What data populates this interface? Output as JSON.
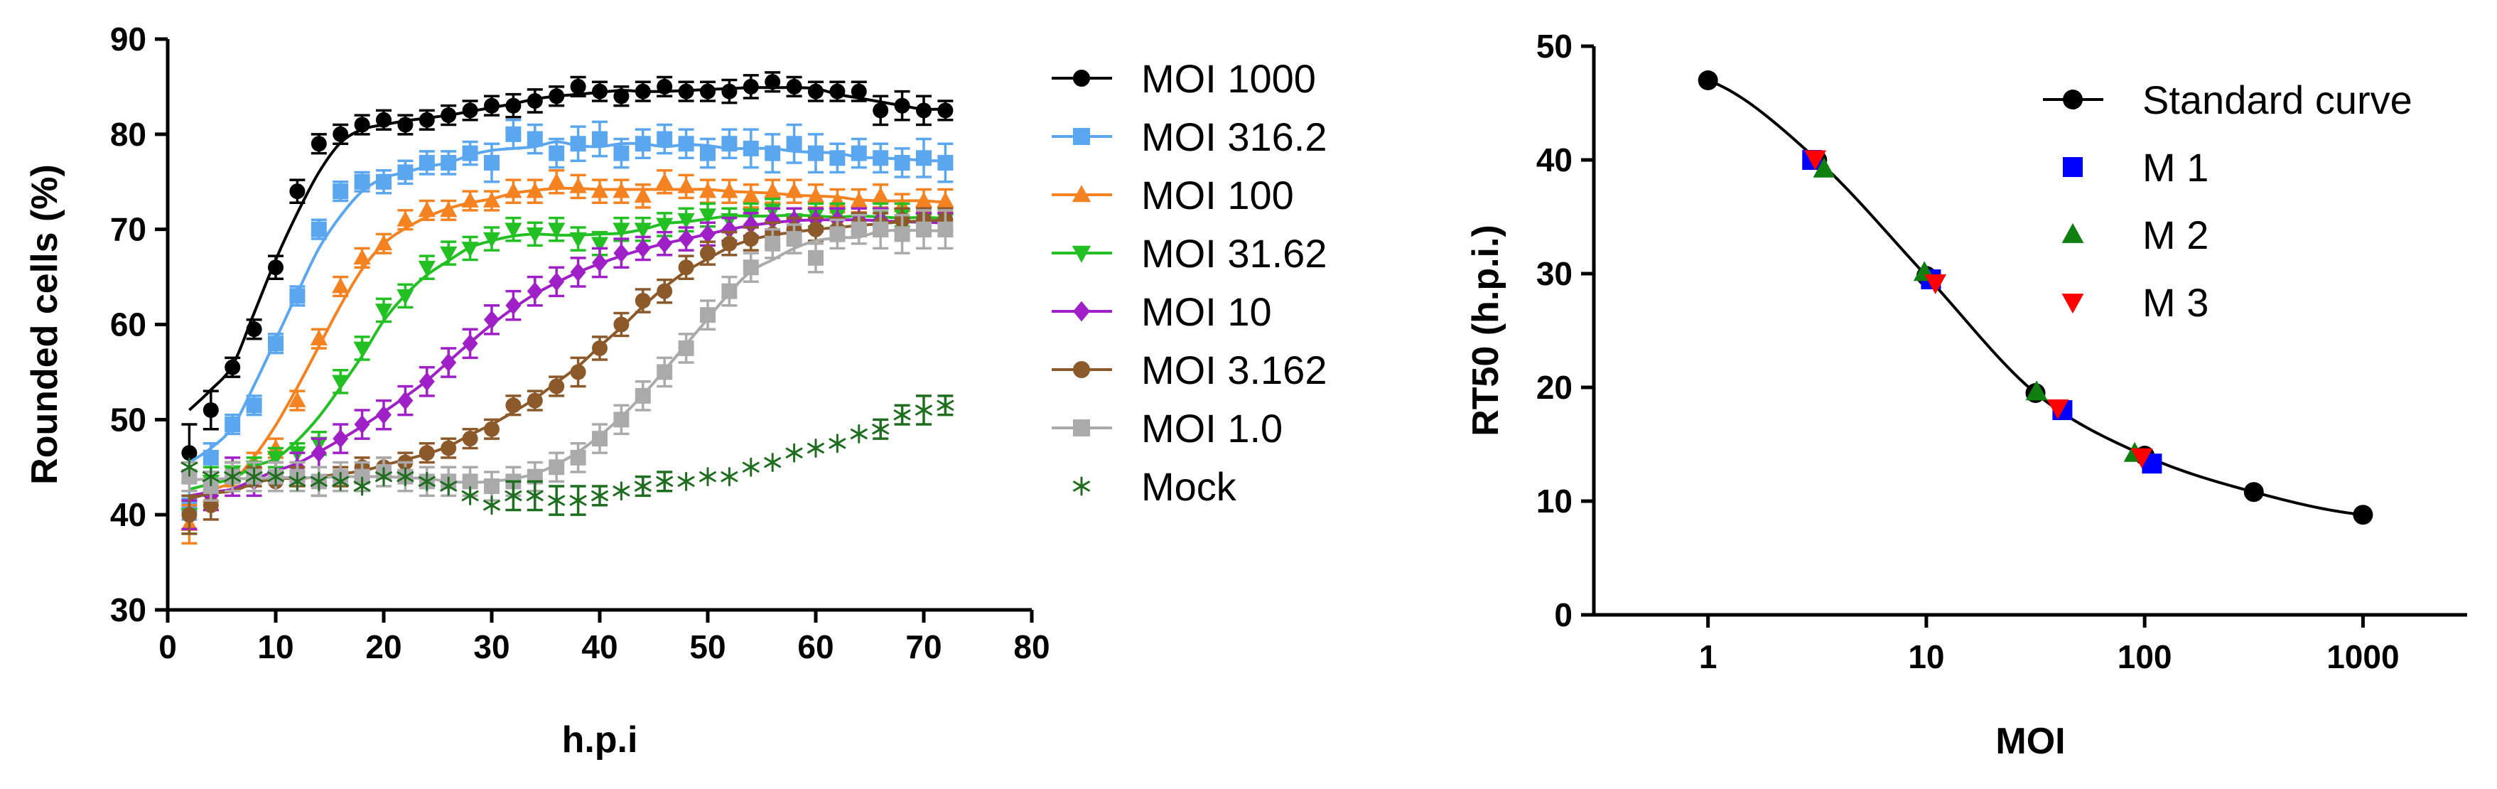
{
  "chart_data": [
    {
      "type": "line",
      "xlabel": "h.p.i",
      "ylabel": "Rounded cells (%)",
      "xlim": [
        0,
        80
      ],
      "ylim": [
        30,
        90
      ],
      "xticks": [
        "0",
        "10",
        "20",
        "30",
        "40",
        "50",
        "60",
        "70",
        "80"
      ],
      "yticks": [
        "30",
        "40",
        "50",
        "60",
        "70",
        "80",
        "90"
      ],
      "grid": false,
      "legend_position": "right",
      "series": [
        {
          "name": "MOI 1000",
          "color": "#000000",
          "marker": "circle",
          "fit": true,
          "x": [
            2,
            4,
            6,
            8,
            10,
            12,
            14,
            16,
            18,
            20,
            22,
            24,
            26,
            28,
            30,
            32,
            34,
            36,
            38,
            40,
            42,
            44,
            46,
            48,
            50,
            52,
            54,
            56,
            58,
            60,
            62,
            64,
            66,
            68,
            70,
            72
          ],
          "y": [
            46.5,
            51,
            55.5,
            59.5,
            66,
            74,
            79,
            80,
            81,
            81.5,
            81,
            81.5,
            82,
            82.5,
            83,
            83,
            83.5,
            84,
            85,
            84.5,
            84,
            84.5,
            85,
            84.5,
            84.5,
            84.5,
            85,
            85.5,
            85,
            84.5,
            84.5,
            84.5,
            82.5,
            83,
            82.5,
            82.5
          ],
          "err": [
            3,
            2,
            1,
            1,
            1.2,
            1.2,
            1,
            1,
            1,
            1,
            1,
            1,
            1,
            1,
            1,
            1.2,
            1.2,
            1,
            1,
            1,
            1,
            1,
            1,
            1,
            1,
            1.2,
            1.2,
            1,
            1,
            1,
            1,
            1,
            1.5,
            1.5,
            1.5,
            1
          ]
        },
        {
          "name": "MOI 316.2",
          "color": "#5aa7f0",
          "marker": "square",
          "fit": true,
          "x": [
            2,
            4,
            6,
            8,
            10,
            12,
            14,
            16,
            18,
            20,
            22,
            24,
            26,
            28,
            30,
            32,
            34,
            36,
            38,
            40,
            42,
            44,
            46,
            48,
            50,
            52,
            54,
            56,
            58,
            60,
            62,
            64,
            66,
            68,
            70,
            72
          ],
          "y": [
            41,
            46,
            49.5,
            51.5,
            58,
            63,
            70,
            74,
            75,
            75,
            76,
            77,
            77,
            78,
            77,
            80,
            79.5,
            78,
            79,
            79.5,
            78,
            79,
            79.5,
            79,
            78,
            79,
            78.5,
            78,
            79,
            78,
            77.5,
            78,
            77.5,
            77,
            77.5,
            77
          ],
          "err": [
            1.5,
            1.5,
            1,
            1,
            1,
            1,
            1,
            1,
            1,
            1.2,
            1.2,
            1.2,
            1.2,
            1.2,
            2,
            1.5,
            1.5,
            1.5,
            1.8,
            1.8,
            1.5,
            1.5,
            1.5,
            1.5,
            1.5,
            1.5,
            2,
            2,
            2,
            2,
            1.5,
            1.5,
            1.5,
            1.5,
            2,
            2
          ]
        },
        {
          "name": "MOI 100",
          "color": "#f58220",
          "marker": "triangle-up",
          "fit": true,
          "x": [
            2,
            4,
            6,
            8,
            10,
            12,
            14,
            16,
            18,
            20,
            22,
            24,
            26,
            28,
            30,
            32,
            34,
            36,
            38,
            40,
            42,
            44,
            46,
            48,
            50,
            52,
            54,
            56,
            58,
            60,
            62,
            64,
            66,
            68,
            70,
            72
          ],
          "y": [
            39,
            42,
            44,
            45.5,
            47,
            52,
            58.5,
            64,
            67,
            68.5,
            71,
            72,
            72,
            73,
            73,
            74,
            74,
            75,
            74.5,
            74,
            74,
            73.5,
            75,
            74.5,
            74,
            74,
            73.5,
            74,
            74,
            73.5,
            73,
            73,
            73.5,
            72.5,
            73,
            73
          ],
          "err": [
            2,
            1.5,
            1,
            1,
            1,
            1,
            1,
            1,
            1,
            1,
            1,
            1,
            1,
            1,
            1,
            1.2,
            1.2,
            1.2,
            1.2,
            1.2,
            1.2,
            1.2,
            1.2,
            1.2,
            1.2,
            1.2,
            1.2,
            1.2,
            1.2,
            1.2,
            1.2,
            1.2,
            1.2,
            1.2,
            1.2,
            1.2
          ]
        },
        {
          "name": "MOI 31.62",
          "color": "#22c022",
          "marker": "triangle-down",
          "fit": true,
          "x": [
            2,
            4,
            6,
            8,
            10,
            12,
            14,
            16,
            18,
            20,
            22,
            24,
            26,
            28,
            30,
            32,
            34,
            36,
            38,
            40,
            42,
            44,
            46,
            48,
            50,
            52,
            54,
            56,
            58,
            60,
            62,
            64,
            66,
            68,
            70,
            72
          ],
          "y": [
            40,
            43.5,
            44.5,
            45,
            46,
            46.5,
            47.5,
            54,
            57.5,
            61.5,
            63,
            66,
            67.5,
            68,
            69,
            70,
            69.5,
            70,
            69,
            68.5,
            70,
            70,
            70.5,
            71,
            71.5,
            71,
            71.5,
            72,
            71,
            71.5,
            71.5,
            71,
            71.5,
            71.5,
            71,
            71
          ],
          "err": [
            2,
            1.5,
            1,
            1,
            1,
            1,
            1.2,
            1.2,
            1.2,
            1.2,
            1.2,
            1.2,
            1.2,
            1.2,
            1.2,
            1.2,
            1.2,
            1.2,
            1.2,
            1.2,
            1.2,
            1.2,
            1.2,
            1.2,
            1.2,
            1.2,
            1.2,
            1.2,
            1.2,
            1.2,
            1.2,
            1.2,
            1.2,
            1.2,
            1.2,
            1.2
          ]
        },
        {
          "name": "MOI 10",
          "color": "#a020c8",
          "marker": "diamond",
          "fit": true,
          "x": [
            2,
            4,
            6,
            8,
            10,
            12,
            14,
            16,
            18,
            20,
            22,
            24,
            26,
            28,
            30,
            32,
            34,
            36,
            38,
            40,
            42,
            44,
            46,
            48,
            50,
            52,
            54,
            56,
            58,
            60,
            62,
            64,
            66,
            68,
            70,
            72
          ],
          "y": [
            40,
            42,
            44,
            43.5,
            44,
            45,
            46.5,
            48,
            49.5,
            50.5,
            52,
            54,
            56,
            58,
            60.5,
            62,
            63.5,
            64.5,
            65.5,
            66.5,
            67.5,
            68,
            68.5,
            69,
            69.5,
            70,
            70.5,
            71,
            71,
            71,
            71,
            71,
            71,
            71,
            70.5,
            70.5
          ],
          "err": [
            1.5,
            1.5,
            2,
            1.5,
            1.5,
            1.5,
            1.5,
            1.5,
            1.5,
            1.5,
            1.5,
            1.5,
            1.5,
            1.5,
            1.5,
            1.5,
            1.5,
            1.5,
            1.5,
            1.5,
            1.5,
            1.2,
            1.2,
            1.2,
            1.2,
            1.2,
            1.2,
            1.2,
            1.2,
            1.2,
            1.2,
            1.2,
            1.2,
            1.2,
            1.2,
            1.2
          ]
        },
        {
          "name": "MOI 3.162",
          "color": "#8c5a2a",
          "marker": "circle",
          "fit": true,
          "x": [
            2,
            4,
            6,
            8,
            10,
            12,
            14,
            16,
            18,
            20,
            22,
            24,
            26,
            28,
            30,
            32,
            34,
            36,
            38,
            40,
            42,
            44,
            46,
            48,
            50,
            52,
            54,
            56,
            58,
            60,
            62,
            64,
            66,
            68,
            70,
            72
          ],
          "y": [
            40,
            41,
            44,
            44,
            43.5,
            44,
            43.5,
            44,
            45,
            45,
            45.5,
            46.5,
            47,
            48,
            49,
            51.5,
            52,
            53.5,
            55,
            57.5,
            60,
            62.5,
            63.5,
            66,
            67.5,
            68.5,
            69,
            69.5,
            70,
            70,
            70,
            70.5,
            70.5,
            71,
            71,
            71
          ],
          "err": [
            2,
            1.5,
            1.5,
            1,
            1,
            1,
            1.5,
            1,
            1,
            1,
            1,
            1,
            1,
            1,
            1,
            1,
            1,
            1,
            1.5,
            1.2,
            1.2,
            1.2,
            1.2,
            1.2,
            1.2,
            1.2,
            1.2,
            1.2,
            1.2,
            1.2,
            1.2,
            1.2,
            1.2,
            1.2,
            1.2,
            1.2
          ]
        },
        {
          "name": "MOI 1.0",
          "color": "#aaaaaa",
          "marker": "square",
          "fit": true,
          "x": [
            2,
            4,
            6,
            8,
            10,
            12,
            14,
            16,
            18,
            20,
            22,
            24,
            26,
            28,
            30,
            32,
            34,
            36,
            38,
            40,
            42,
            44,
            46,
            48,
            50,
            52,
            54,
            56,
            58,
            60,
            62,
            64,
            66,
            68,
            70,
            72
          ],
          "y": [
            44,
            43,
            44,
            44,
            44,
            44,
            43.5,
            44,
            44,
            44.5,
            44,
            43.5,
            43.5,
            43.5,
            43,
            43.5,
            44,
            45,
            46,
            48,
            50,
            52.5,
            55,
            57.5,
            61,
            63.5,
            66,
            68.5,
            69,
            67,
            69.5,
            70,
            70,
            69.5,
            70,
            70
          ],
          "err": [
            1.5,
            1.5,
            1.5,
            1.5,
            1.5,
            1.5,
            1.5,
            1.5,
            1.5,
            1.5,
            1.5,
            1.5,
            1.5,
            1.5,
            1.5,
            1.5,
            1.5,
            1.5,
            1.5,
            1.5,
            1.5,
            1.5,
            1.5,
            1.5,
            1.5,
            1.5,
            1.5,
            1.5,
            1.5,
            1.5,
            1.5,
            1.5,
            2,
            2,
            2,
            2
          ]
        },
        {
          "name": "Mock",
          "color": "#1f6e1f",
          "marker": "asterisk",
          "fit": false,
          "x": [
            2,
            4,
            6,
            8,
            10,
            12,
            14,
            16,
            18,
            20,
            22,
            24,
            26,
            28,
            30,
            32,
            34,
            36,
            38,
            40,
            42,
            44,
            46,
            48,
            50,
            52,
            54,
            56,
            58,
            60,
            62,
            64,
            66,
            68,
            70,
            72
          ],
          "y": [
            45,
            44,
            44,
            44,
            44,
            43.5,
            43.5,
            43.5,
            43,
            44,
            44,
            43.5,
            43,
            42,
            41,
            42,
            42,
            41.5,
            41.5,
            42,
            42.5,
            43,
            43.5,
            43.5,
            44,
            44,
            45,
            45.5,
            46.5,
            47,
            47.5,
            48.5,
            49,
            50.5,
            51,
            51.5
          ],
          "err": [
            0,
            0,
            0,
            0,
            0,
            0,
            0,
            0,
            0,
            0,
            0,
            0,
            0,
            0,
            0,
            1.5,
            1.5,
            1.5,
            1.5,
            1,
            0,
            1,
            1,
            0,
            0,
            0,
            0,
            0,
            0,
            0,
            0,
            0,
            1,
            1,
            1.5,
            1
          ]
        }
      ]
    },
    {
      "type": "scatter",
      "xlabel": "MOI",
      "ylabel": "RT50 (h.p.i.)",
      "xscale": "log",
      "xlim": [
        0.3,
        3000
      ],
      "ylim": [
        0,
        50
      ],
      "xticks": [
        "1",
        "10",
        "100",
        "1000"
      ],
      "yticks": [
        "0",
        "10",
        "20",
        "30",
        "40",
        "50"
      ],
      "grid": false,
      "legend_position": "top-right",
      "series": [
        {
          "name": "Standard curve",
          "color": "#000000",
          "marker": "circle",
          "fit": true,
          "x": [
            1,
            3.162,
            10,
            31.62,
            100,
            316.2,
            1000
          ],
          "y": [
            47,
            40,
            29.8,
            19.5,
            14,
            10.8,
            8.8
          ]
        },
        {
          "name": "M 1",
          "color": "#0000ff",
          "marker": "square",
          "fit": false,
          "x": [
            3.0,
            10.5,
            42,
            108
          ],
          "y": [
            40,
            29.5,
            18,
            13.3
          ]
        },
        {
          "name": "M 2",
          "color": "#0f7f0f",
          "marker": "triangle-up",
          "fit": false,
          "x": [
            3.4,
            9.8,
            32,
            90
          ],
          "y": [
            39.2,
            30.1,
            19.6,
            14.2
          ]
        },
        {
          "name": "M 3",
          "color": "#ff0000",
          "marker": "triangle-down",
          "fit": false,
          "x": [
            3.1,
            11,
            40,
            97
          ],
          "y": [
            40.1,
            29.2,
            18.2,
            13.9
          ]
        }
      ]
    }
  ]
}
